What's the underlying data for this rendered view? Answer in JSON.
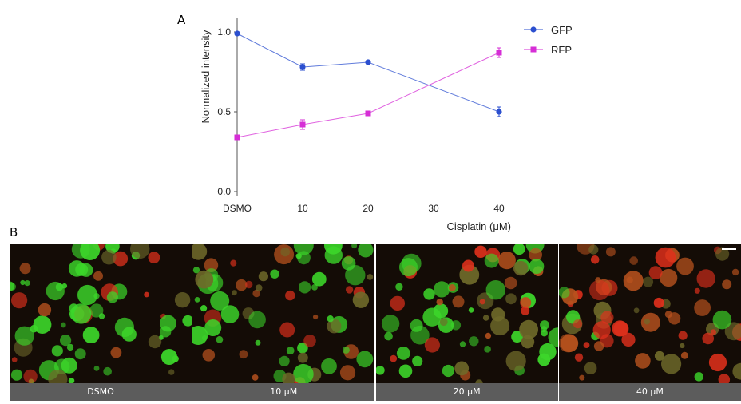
{
  "panels": {
    "a_label": "A",
    "b_label": "B"
  },
  "chart_data": {
    "type": "line",
    "categories": [
      "DSMO",
      "10",
      "20",
      "30",
      "40"
    ],
    "x": [
      0,
      10,
      20,
      30,
      40
    ],
    "xlabel": "Cisplatin (μM)",
    "ylabel": "Normalized intensity",
    "ylim": [
      0.0,
      1.0
    ],
    "yticks": [
      "0.0",
      "0.5",
      "1.0"
    ],
    "legend_position": "top-right",
    "grid": false,
    "series": [
      {
        "name": "GFP",
        "marker": "circle",
        "color": "#2b4fcf",
        "x": [
          0,
          10,
          20,
          40
        ],
        "values": [
          0.99,
          0.78,
          0.81,
          0.5
        ],
        "errors": [
          0.01,
          0.02,
          0.01,
          0.03
        ]
      },
      {
        "name": "RFP",
        "marker": "square",
        "color": "#d62ed6",
        "x": [
          0,
          10,
          20,
          40
        ],
        "values": [
          0.34,
          0.42,
          0.49,
          0.87
        ],
        "errors": [
          0.01,
          0.03,
          0.01,
          0.03
        ]
      }
    ]
  },
  "micrographs": [
    {
      "caption": "DSMO",
      "red": 0.25,
      "green": 0.85
    },
    {
      "caption": "10 μM",
      "red": 0.35,
      "green": 0.75
    },
    {
      "caption": "20 μM",
      "red": 0.45,
      "green": 0.7
    },
    {
      "caption": "40 μM",
      "red": 0.85,
      "green": 0.3
    }
  ]
}
